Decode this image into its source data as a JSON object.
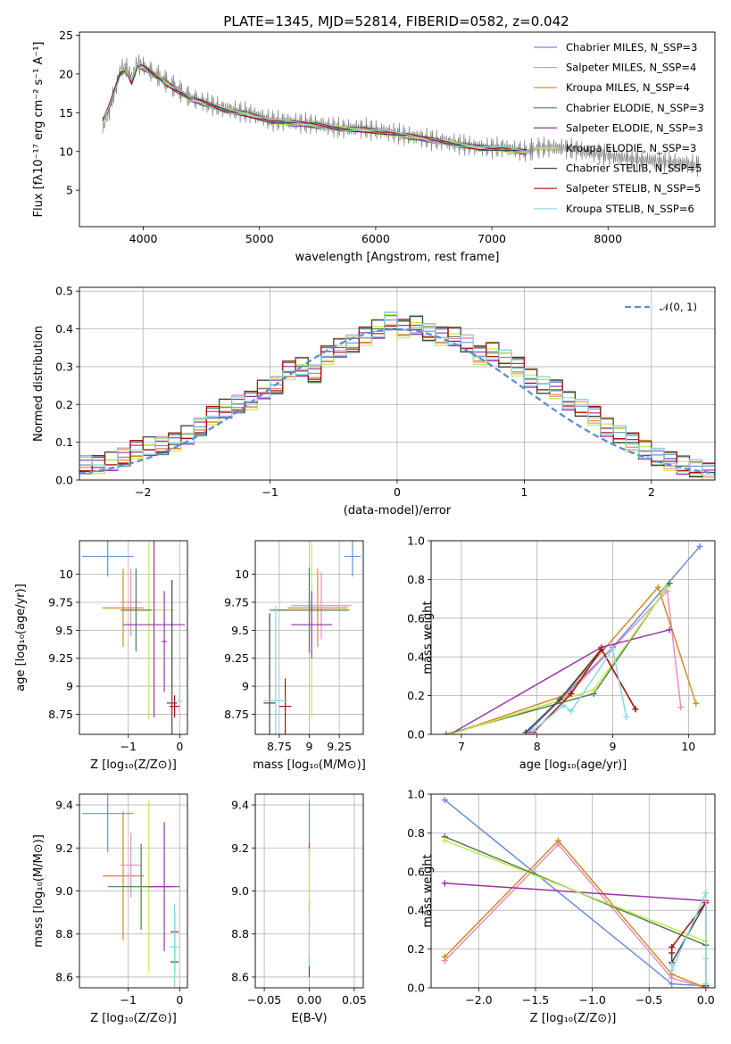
{
  "figure_title": "PLATE=1345, MJD=52814, FIBERID=0582, z=0.042",
  "chart_data": [
    {
      "id": "spectrum",
      "type": "line",
      "xlabel": "wavelength [Angstrom, rest frame]",
      "ylabel": "Flux [fλ10⁻¹⁷ erg cm⁻² s⁻¹ A⁻¹]",
      "xlim": [
        3450,
        8920
      ],
      "ylim": [
        0.3,
        25.4
      ],
      "xticks": [
        4000,
        5000,
        6000,
        7000,
        8000
      ],
      "yticks": [
        5,
        10,
        15,
        20,
        25
      ],
      "data_label": "data",
      "data_color": "#808080",
      "data": {
        "x": [
          3650,
          3700,
          3750,
          3800,
          3850,
          3900,
          3950,
          4000,
          4100,
          4200,
          4300,
          4400,
          4500,
          4700,
          4900,
          5100,
          5300,
          5500,
          5700,
          5900,
          6100,
          6300,
          6500,
          6700,
          6900,
          7100,
          7300,
          7400,
          7600,
          7800,
          8000,
          8200,
          8400,
          8600,
          8800
        ],
        "y": [
          13.0,
          15.0,
          17.5,
          20.5,
          21.0,
          19.5,
          21.5,
          21.0,
          20.0,
          19.0,
          18.0,
          17.0,
          16.5,
          15.5,
          15.0,
          14.0,
          13.8,
          13.5,
          13.0,
          13.0,
          12.5,
          12.0,
          11.5,
          11.0,
          10.5,
          10.5,
          10.0,
          10.5,
          10.5,
          10.0,
          9.5,
          9.0,
          8.8,
          8.5,
          8.2
        ]
      },
      "model_x": [
        3650,
        3700,
        3800,
        3850,
        3900,
        3950,
        4000,
        4100,
        4200,
        4300,
        4400,
        4500,
        4700,
        4900,
        5100,
        5300,
        5500,
        5700,
        5900,
        6100,
        6300,
        6500,
        6700,
        6900,
        7100,
        7300
      ],
      "model_y": [
        14.0,
        15.5,
        20.0,
        20.5,
        19.0,
        21.0,
        20.8,
        19.8,
        18.8,
        17.8,
        16.8,
        16.3,
        15.3,
        14.8,
        13.9,
        13.6,
        13.3,
        12.9,
        12.8,
        12.4,
        11.9,
        11.4,
        10.9,
        10.5,
        10.3,
        9.9
      ],
      "legend_position": "upper right",
      "series": [
        {
          "name": "Chabrier MILES, N_SSP=3",
          "color": "#6a8fdc"
        },
        {
          "name": "Salpeter MILES, N_SSP=4",
          "color": "#e38fc4"
        },
        {
          "name": "Kroupa MILES, N_SSP=4",
          "color": "#d48a28"
        },
        {
          "name": "Chabrier ELODIE, N_SSP=3",
          "color": "#4e7f4e"
        },
        {
          "name": "Salpeter ELODIE, N_SSP=3",
          "color": "#9933aa"
        },
        {
          "name": "Kroupa ELODIE, N_SSP=3",
          "color": "#c3ea52"
        },
        {
          "name": "Chabrier STELIB, N_SSP=5",
          "color": "#444444"
        },
        {
          "name": "Salpeter STELIB, N_SSP=5",
          "color": "#aa1111"
        },
        {
          "name": "Kroupa STELIB, N_SSP=6",
          "color": "#88d8e0"
        }
      ]
    },
    {
      "id": "residuals",
      "type": "bar",
      "xlabel": "(data-model)/error",
      "ylabel": "Normed distribution",
      "xlim": [
        -2.5,
        2.5
      ],
      "ylim": [
        0,
        0.51
      ],
      "xticks": [
        -2,
        -1,
        0,
        1,
        2
      ],
      "yticks": [
        0.0,
        0.1,
        0.2,
        0.3,
        0.4,
        0.5
      ],
      "grid": true,
      "legend": "𝒩(0, 1)",
      "legend_position": "upper right",
      "bin_edges_start": -2.5,
      "bin_width": 0.1,
      "values": [
        0.04,
        0.04,
        0.05,
        0.06,
        0.08,
        0.09,
        0.09,
        0.1,
        0.12,
        0.14,
        0.17,
        0.19,
        0.2,
        0.21,
        0.24,
        0.25,
        0.29,
        0.3,
        0.28,
        0.33,
        0.35,
        0.36,
        0.38,
        0.4,
        0.42,
        0.4,
        0.41,
        0.39,
        0.38,
        0.38,
        0.36,
        0.33,
        0.34,
        0.32,
        0.3,
        0.27,
        0.25,
        0.24,
        0.21,
        0.19,
        0.17,
        0.14,
        0.12,
        0.1,
        0.08,
        0.06,
        0.05,
        0.04,
        0.03,
        0.02
      ]
    },
    {
      "id": "age-vs-z",
      "type": "scatter",
      "xlabel": "Z [log₁₀(Z/Z⊙)]",
      "ylabel": "age  [log₁₀(age/yr)]",
      "xlim": [
        -1.95,
        0.15
      ],
      "ylim": [
        8.57,
        10.3
      ],
      "xticks": [
        -1,
        0
      ],
      "yticks": [
        8.75,
        9.0,
        9.25,
        9.5,
        9.75,
        10.0
      ],
      "points": [
        {
          "color": "#6a8fdc",
          "x": -1.4,
          "xerr": 0.5,
          "y": 10.16,
          "yerr": 0.18
        },
        {
          "color": "#d48a28",
          "x": -1.1,
          "xerr": 0.4,
          "y": 9.7,
          "yerr": 0.35
        },
        {
          "color": "#e38fc4",
          "x": -0.95,
          "xerr": 0.2,
          "y": 9.75,
          "yerr": 0.3
        },
        {
          "color": "#c3ea52",
          "x": -0.6,
          "xerr": 0.5,
          "y": 9.68,
          "yerr": 0.97
        },
        {
          "color": "#4e7f4e",
          "x": -0.85,
          "xerr": 0.3,
          "y": 9.68,
          "yerr": 0.37
        },
        {
          "color": "#9933aa",
          "x": -0.5,
          "xerr": 0.6,
          "y": 9.55,
          "yerr": 0.83
        },
        {
          "color": "#9933aa",
          "x": -0.3,
          "xerr": 0.05,
          "y": 9.4,
          "yerr": 0.45
        },
        {
          "color": "#444444",
          "x": -0.15,
          "xerr": 0.1,
          "y": 8.85,
          "yerr": 1.1
        },
        {
          "color": "#aa1111",
          "x": -0.1,
          "xerr": 0.1,
          "y": 8.82,
          "yerr": 0.1
        },
        {
          "color": "#88d8e0",
          "x": 0.0,
          "xerr": 0.05,
          "y": 8.87,
          "yerr": 0.1
        }
      ]
    },
    {
      "id": "age-vs-mass",
      "type": "scatter",
      "xlabel": "mass [log₁₀(M/M⊙)]",
      "ylabel": "",
      "xlim": [
        8.55,
        9.45
      ],
      "ylim": [
        8.57,
        10.3
      ],
      "xticks": [
        8.75,
        9.0,
        9.25
      ],
      "yticks": [
        8.75,
        9.0,
        9.25,
        9.5,
        9.75,
        10.0
      ],
      "points": [
        {
          "color": "#6a8fdc",
          "x": 9.36,
          "xerr": 0.07,
          "y": 10.16,
          "yerr": 0.18
        },
        {
          "color": "#d48a28",
          "x": 9.07,
          "xerr": 0.25,
          "y": 9.7,
          "yerr": 0.35
        },
        {
          "color": "#e38fc4",
          "x": 9.1,
          "xerr": 0.25,
          "y": 9.72,
          "yerr": 0.3
        },
        {
          "color": "#c3ea52",
          "x": 9.02,
          "xerr": 0.33,
          "y": 9.68,
          "yerr": 0.96
        },
        {
          "color": "#4e7f4e",
          "x": 9.0,
          "xerr": 0.33,
          "y": 9.68,
          "yerr": 0.38
        },
        {
          "color": "#9933aa",
          "x": 9.02,
          "xerr": 0.17,
          "y": 9.55,
          "yerr": 0.3
        },
        {
          "color": "#444444",
          "x": 8.67,
          "xerr": 0.05,
          "y": 8.85,
          "yerr": 0.8
        },
        {
          "color": "#aa1111",
          "x": 8.8,
          "xerr": 0.05,
          "y": 8.82,
          "yerr": 0.25
        },
        {
          "color": "#88d8e0",
          "x": 8.72,
          "xerr": 0.1,
          "y": 8.87,
          "yerr": 0.85
        }
      ]
    },
    {
      "id": "weight-vs-age",
      "type": "line",
      "xlabel": "age  [log₁₀(age/yr)]",
      "ylabel": "mass weight",
      "xlim": [
        6.6,
        10.35
      ],
      "ylim": [
        0,
        1.0
      ],
      "xticks": [
        7,
        8,
        9,
        10
      ],
      "yticks": [
        0.0,
        0.2,
        0.4,
        0.6,
        0.8,
        1.0
      ],
      "series": [
        {
          "color": "#6a8fdc",
          "x": [
            7.9,
            9.0,
            10.15
          ],
          "y": [
            0.02,
            0.45,
            0.97
          ]
        },
        {
          "color": "#e38fc4",
          "x": [
            6.85,
            8.35,
            9.72,
            9.9
          ],
          "y": [
            0.0,
            0.18,
            0.74,
            0.14
          ]
        },
        {
          "color": "#d48a28",
          "x": [
            6.85,
            8.35,
            9.6,
            10.1
          ],
          "y": [
            0.0,
            0.2,
            0.76,
            0.16
          ]
        },
        {
          "color": "#4e7f4e",
          "x": [
            6.8,
            8.75,
            9.75
          ],
          "y": [
            0.0,
            0.21,
            0.78
          ]
        },
        {
          "color": "#9933aa",
          "x": [
            6.85,
            8.85,
            9.75
          ],
          "y": [
            0.0,
            0.45,
            0.54
          ]
        },
        {
          "color": "#c3ea52",
          "x": [
            6.85,
            8.75,
            9.72
          ],
          "y": [
            0.0,
            0.23,
            0.76
          ]
        },
        {
          "color": "#444444",
          "x": [
            7.85,
            8.3,
            8.85,
            9.3
          ],
          "y": [
            0.01,
            0.18,
            0.44,
            0.13
          ]
        },
        {
          "color": "#aa1111",
          "x": [
            7.95,
            8.45,
            8.85,
            9.3
          ],
          "y": [
            0.01,
            0.21,
            0.44,
            0.13
          ]
        },
        {
          "color": "#88d8e0",
          "x": [
            7.95,
            8.35,
            8.45,
            9.0,
            9.18
          ],
          "y": [
            0.02,
            0.15,
            0.12,
            0.44,
            0.09
          ]
        }
      ]
    },
    {
      "id": "mass-vs-z",
      "type": "scatter",
      "xlabel": "Z [log₁₀(Z/Z⊙)]",
      "ylabel": "mass [log₁₀(M/M⊙)]",
      "xlim": [
        -1.95,
        0.15
      ],
      "ylim": [
        8.55,
        9.45
      ],
      "xticks": [
        -1,
        0
      ],
      "yticks": [
        8.6,
        8.8,
        9.0,
        9.2,
        9.4
      ],
      "points": [
        {
          "color": "#6a8fdc",
          "x": -1.4,
          "xerr": 0.5,
          "y": 9.36,
          "yerr": 0.18
        },
        {
          "color": "#d48a28",
          "x": -1.1,
          "xerr": 0.4,
          "y": 9.07,
          "yerr": 0.3
        },
        {
          "color": "#e38fc4",
          "x": -0.95,
          "xerr": 0.2,
          "y": 9.12,
          "yerr": 0.15
        },
        {
          "color": "#c3ea52",
          "x": -0.6,
          "xerr": 0.5,
          "y": 9.02,
          "yerr": 0.4
        },
        {
          "color": "#4e7f4e",
          "x": -0.75,
          "xerr": 0.65,
          "y": 9.02,
          "yerr": 0.2
        },
        {
          "color": "#9933aa",
          "x": -0.3,
          "xerr": 0.3,
          "y": 9.02,
          "yerr": 0.3
        },
        {
          "color": "#444444",
          "x": -0.1,
          "xerr": 0.08,
          "y": 8.67,
          "yerr": 0.05
        },
        {
          "color": "#aa1111",
          "x": -0.1,
          "xerr": 0.08,
          "y": 8.81,
          "yerr": 0.1
        },
        {
          "color": "#88d8e0",
          "x": -0.1,
          "xerr": 0.1,
          "y": 8.74,
          "yerr": 0.2
        }
      ]
    },
    {
      "id": "mass-vs-ebv",
      "type": "scatter",
      "xlabel": "E(B-V)",
      "ylabel": "",
      "xlim": [
        -0.06,
        0.06
      ],
      "ylim": [
        8.55,
        9.45
      ],
      "xticks": [
        -0.05,
        0.0,
        0.05
      ],
      "xtick_labels": [
        "−0.05",
        "0.00",
        "0.05"
      ],
      "yticks": [
        8.6,
        8.8,
        9.0,
        9.2,
        9.4
      ],
      "points": [
        {
          "color": "#6a8fdc",
          "x": 0.0,
          "xerr": 0,
          "y": 9.3,
          "yerr": 0.12
        },
        {
          "color": "#d48a28",
          "x": 0.0,
          "xerr": 0,
          "y": 9.05,
          "yerr": 0.15
        },
        {
          "color": "#9933aa",
          "x": 0.0,
          "xerr": 0,
          "y": 9.2,
          "yerr": 0.02
        },
        {
          "color": "#c3ea52",
          "x": 0.0,
          "xerr": 0,
          "y": 9.0,
          "yerr": 0.2
        },
        {
          "color": "#444444",
          "x": 0.0,
          "xerr": 0,
          "y": 8.65,
          "yerr": 0.05
        },
        {
          "color": "#88d8e0",
          "x": 0.0,
          "xerr": 0,
          "y": 8.8,
          "yerr": 0.15
        }
      ]
    },
    {
      "id": "weight-vs-z",
      "type": "line",
      "xlabel": "Z [log₁₀(Z/Z⊙)]",
      "ylabel": "mass weight",
      "xlim": [
        -2.42,
        0.08
      ],
      "ylim": [
        0,
        1.0
      ],
      "xticks": [
        -2.0,
        -1.5,
        -1.0,
        -0.5,
        0.0
      ],
      "xtick_labels": [
        "−2.0",
        "−1.5",
        "−1.0",
        "−0.5",
        "0.0"
      ],
      "yticks": [
        0.0,
        0.2,
        0.4,
        0.6,
        0.8,
        1.0
      ],
      "series": [
        {
          "color": "#6a8fdc",
          "x": [
            -2.3,
            -0.3,
            0.0
          ],
          "y": [
            0.97,
            0.02,
            0.01
          ]
        },
        {
          "color": "#e38fc4",
          "x": [
            -2.3,
            -1.3,
            -0.3,
            0.0
          ],
          "y": [
            0.14,
            0.74,
            0.05,
            0.0
          ]
        },
        {
          "color": "#d48a28",
          "x": [
            -2.3,
            -1.3,
            -0.3,
            0.0
          ],
          "y": [
            0.16,
            0.76,
            0.07,
            0.0
          ]
        },
        {
          "color": "#4e7f4e",
          "x": [
            -2.3,
            0.0
          ],
          "y": [
            0.78,
            0.22
          ]
        },
        {
          "color": "#9933aa",
          "x": [
            -2.3,
            0.0
          ],
          "y": [
            0.54,
            0.45
          ]
        },
        {
          "color": "#c3ea52",
          "x": [
            -2.3,
            0.0
          ],
          "y": [
            0.76,
            0.24
          ]
        },
        {
          "color": "#444444",
          "x": [
            -0.3,
            -0.3,
            0.0,
            0.0
          ],
          "y": [
            0.21,
            0.13,
            0.44,
            0.01
          ]
        },
        {
          "color": "#aa1111",
          "x": [
            -0.3,
            -0.3,
            0.0,
            0.0
          ],
          "y": [
            0.18,
            0.21,
            0.44,
            0.01
          ]
        },
        {
          "color": "#88d8e0",
          "x": [
            -0.3,
            -0.3,
            0.0,
            0.0,
            0.0
          ],
          "y": [
            0.12,
            0.09,
            0.49,
            0.15,
            0.02
          ]
        }
      ]
    }
  ]
}
